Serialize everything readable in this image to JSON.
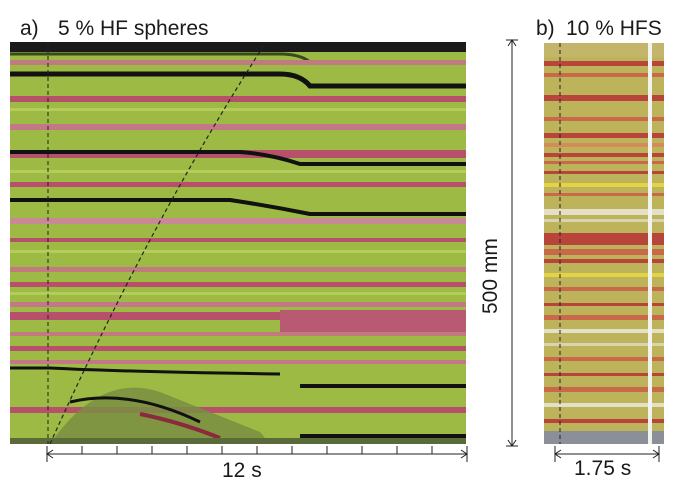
{
  "panel_a": {
    "label": "a)",
    "title": "5 % HF spheres",
    "time_scale_label": "12 s",
    "colors": {
      "base": "#9dbb44",
      "red_band": "#b6506b",
      "dark_band": "#111111"
    }
  },
  "panel_b": {
    "label": "b)",
    "title": "10 % HFS",
    "time_scale_label": "1.75 s",
    "length_scale_label": "500 mm",
    "colors": {
      "base": "#bdb35a",
      "red_band": "#b8443c",
      "yellow_band": "#e4d444"
    }
  }
}
